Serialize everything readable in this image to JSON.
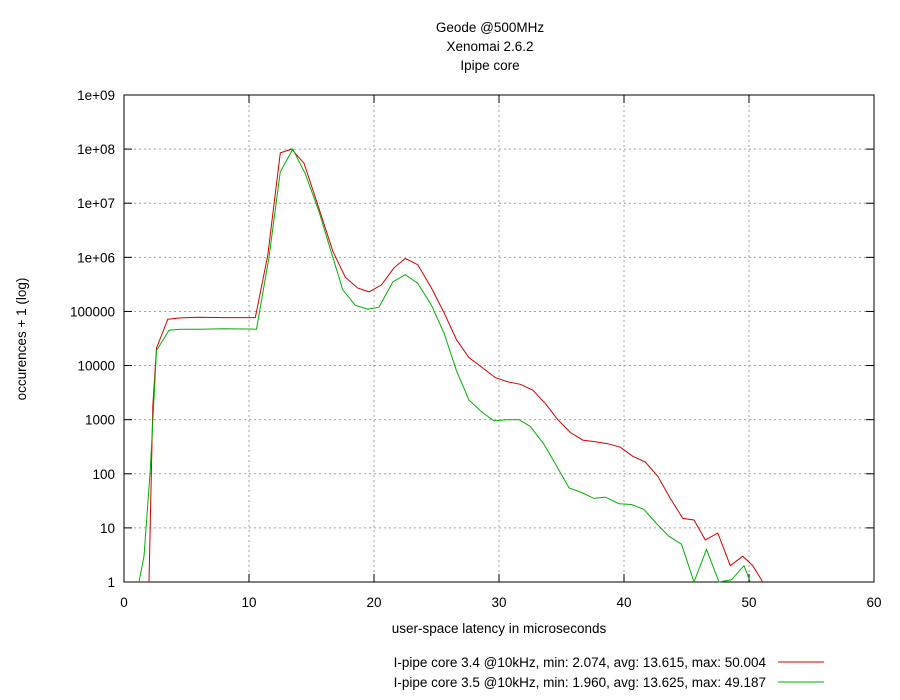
{
  "chart_data": {
    "type": "line",
    "title": [
      "Geode @500MHz",
      "Xenomai 2.6.2",
      "Ipipe core"
    ],
    "xlabel": "user-space latency in microseconds",
    "ylabel": "occurences + 1 (log)",
    "xlim": [
      0,
      60
    ],
    "ylim": [
      1,
      1000000000
    ],
    "yscale": "log",
    "grid": true,
    "legend_position": "bottom-right",
    "x_ticks": [
      "0",
      "10",
      "20",
      "30",
      "40",
      "50",
      "60"
    ],
    "y_ticks": [
      "1",
      "10",
      "100",
      "1000",
      "10000",
      "100000",
      "1e+06",
      "1e+07",
      "1e+08",
      "1e+09"
    ],
    "series": [
      {
        "name": "I-pipe core 3.4 @10kHz, min: 2.074, avg: 13.615, max: 50.004",
        "color": "#d00000",
        "points": [
          [
            2.0,
            1
          ],
          [
            2.3,
            1800
          ],
          [
            2.6,
            21000
          ],
          [
            3.5,
            72000
          ],
          [
            4.5,
            76000
          ],
          [
            6,
            78000
          ],
          [
            8,
            77000
          ],
          [
            10.5,
            77000
          ],
          [
            11.5,
            1100000
          ],
          [
            12.5,
            85000000
          ],
          [
            13.4,
            100000000
          ],
          [
            14.4,
            55000000
          ],
          [
            15.6,
            8000000
          ],
          [
            16.7,
            1300000
          ],
          [
            17.7,
            430000
          ],
          [
            18.7,
            270000
          ],
          [
            19.6,
            230000
          ],
          [
            20.6,
            310000
          ],
          [
            21.6,
            640000
          ],
          [
            22.5,
            950000
          ],
          [
            23.5,
            730000
          ],
          [
            24.6,
            270000
          ],
          [
            25.6,
            95000
          ],
          [
            26.6,
            30000
          ],
          [
            27.6,
            14000
          ],
          [
            28.7,
            9000
          ],
          [
            29.7,
            6000
          ],
          [
            30.7,
            5000
          ],
          [
            31.7,
            4500
          ],
          [
            32.7,
            3500
          ],
          [
            33.7,
            2000
          ],
          [
            34.7,
            1000
          ],
          [
            35.7,
            580
          ],
          [
            36.7,
            420
          ],
          [
            37.7,
            390
          ],
          [
            38.7,
            360
          ],
          [
            39.7,
            310
          ],
          [
            40.7,
            210
          ],
          [
            41.7,
            165
          ],
          [
            42.7,
            90
          ],
          [
            43.7,
            35
          ],
          [
            44.7,
            15
          ],
          [
            45.6,
            14
          ],
          [
            46.5,
            6
          ],
          [
            47.5,
            8
          ],
          [
            48.5,
            2
          ],
          [
            49.5,
            3
          ],
          [
            50.3,
            2
          ],
          [
            51.1,
            1
          ]
        ]
      },
      {
        "name": "I-pipe core 3.5 @10kHz, min: 1.960, avg: 13.625, max: 49.187",
        "color": "#00b000",
        "points": [
          [
            1.2,
            1
          ],
          [
            1.6,
            3
          ],
          [
            2.1,
            120
          ],
          [
            2.6,
            19000
          ],
          [
            3.6,
            45000
          ],
          [
            4.5,
            47000
          ],
          [
            6,
            47000
          ],
          [
            8,
            48000
          ],
          [
            10.6,
            47000
          ],
          [
            11.6,
            1000000
          ],
          [
            12.5,
            38000000
          ],
          [
            13.5,
            100000000
          ],
          [
            14.5,
            35000000
          ],
          [
            15.6,
            7000000
          ],
          [
            16.6,
            1200000
          ],
          [
            17.5,
            250000
          ],
          [
            18.5,
            130000
          ],
          [
            19.5,
            110000
          ],
          [
            20.4,
            120000
          ],
          [
            21.5,
            350000
          ],
          [
            22.5,
            480000
          ],
          [
            23.5,
            330000
          ],
          [
            24.6,
            130000
          ],
          [
            25.6,
            40000
          ],
          [
            26.6,
            8000
          ],
          [
            27.6,
            2300
          ],
          [
            28.6,
            1400
          ],
          [
            29.6,
            950
          ],
          [
            30.6,
            1000
          ],
          [
            31.6,
            1000
          ],
          [
            32.5,
            750
          ],
          [
            33.6,
            350
          ],
          [
            34.6,
            140
          ],
          [
            35.6,
            55
          ],
          [
            36.6,
            45
          ],
          [
            37.6,
            35
          ],
          [
            38.5,
            37
          ],
          [
            39.6,
            28
          ],
          [
            40.6,
            27
          ],
          [
            41.6,
            22
          ],
          [
            42.6,
            12
          ],
          [
            43.6,
            7
          ],
          [
            44.6,
            5
          ],
          [
            45.6,
            1
          ],
          [
            46.6,
            4
          ],
          [
            47.6,
            1
          ],
          [
            48.6,
            1.1
          ],
          [
            49.6,
            2
          ],
          [
            50.1,
            1
          ]
        ]
      }
    ]
  }
}
